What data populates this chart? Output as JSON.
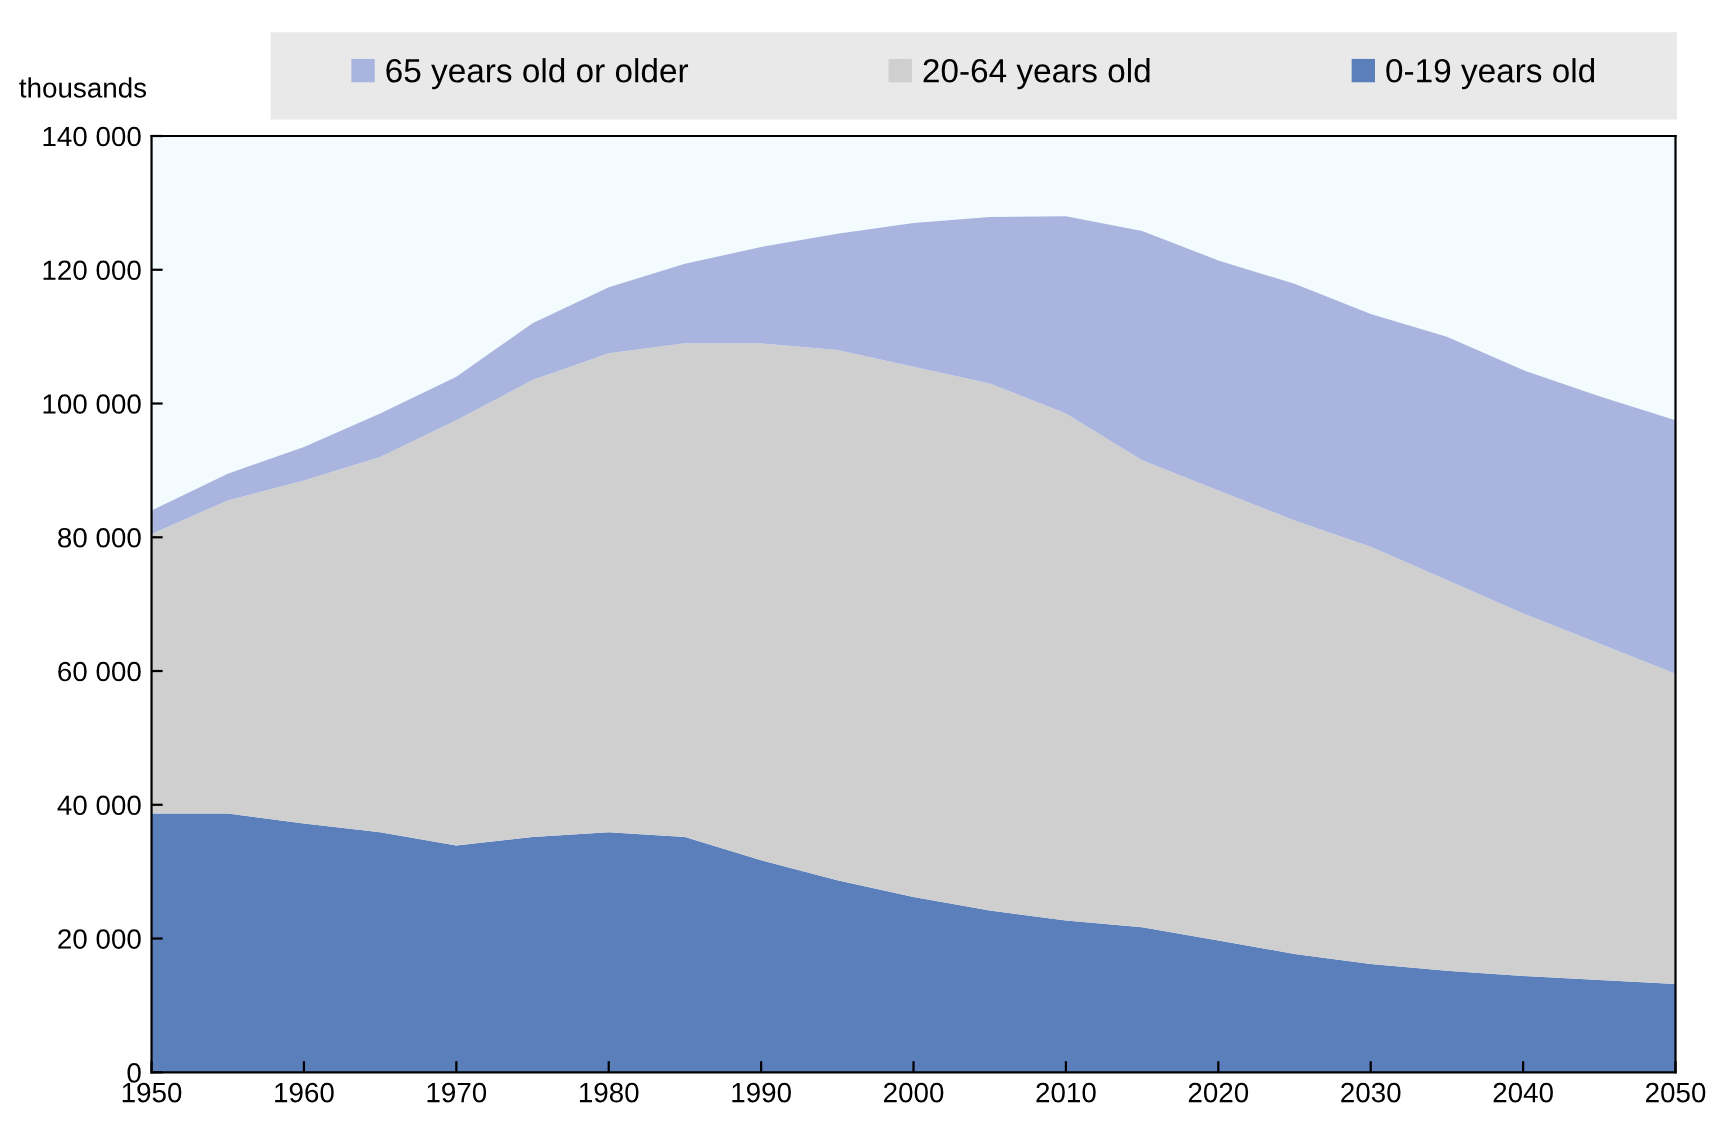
{
  "chart_data": {
    "type": "area",
    "stacked": true,
    "ylabel": "thousands",
    "x": [
      1950,
      1955,
      1960,
      1965,
      1970,
      1975,
      1980,
      1985,
      1990,
      1995,
      2000,
      2005,
      2010,
      2015,
      2020,
      2025,
      2030,
      2035,
      2040,
      2045,
      2050
    ],
    "series": [
      {
        "name": "0-19 years old",
        "color": "#5b7fbb",
        "values": [
          38700,
          38700,
          37200,
          35900,
          33900,
          35200,
          35900,
          35200,
          31700,
          28700,
          26200,
          24200,
          22700,
          21700,
          19700,
          17700,
          16200,
          15200,
          14400,
          13800,
          13200
        ]
      },
      {
        "name": "20-64 years old",
        "color": "#cfcfcf",
        "values": [
          41800,
          46800,
          51300,
          56100,
          63600,
          68300,
          71600,
          73800,
          77300,
          79300,
          79300,
          78800,
          75800,
          69800,
          67300,
          64800,
          62400,
          58400,
          54200,
          50300,
          46400
        ]
      },
      {
        "name": "65 years old or older",
        "color": "#a9b5de",
        "values": [
          3500,
          4000,
          5000,
          6500,
          6500,
          8500,
          9900,
          11900,
          14400,
          17400,
          21500,
          24900,
          29500,
          34300,
          34400,
          35400,
          34800,
          36400,
          36400,
          37000,
          37900
        ]
      }
    ],
    "xlim": [
      1950,
      2050
    ],
    "xticks": [
      1950,
      1960,
      1970,
      1980,
      1990,
      2000,
      2010,
      2020,
      2030,
      2040,
      2050
    ],
    "ylim": [
      0,
      140000
    ],
    "yticks": [
      0,
      {
        "value": 20000,
        "label": "20 000"
      },
      {
        "value": 40000,
        "label": "40 000"
      },
      {
        "value": 60000,
        "label": "60 000"
      },
      {
        "value": 80000,
        "label": "80 000"
      },
      {
        "value": 100000,
        "label": "100 000"
      },
      {
        "value": 120000,
        "label": "120 000"
      },
      {
        "value": 140000,
        "label": "140 000"
      }
    ],
    "grid": false,
    "legend": "top"
  }
}
